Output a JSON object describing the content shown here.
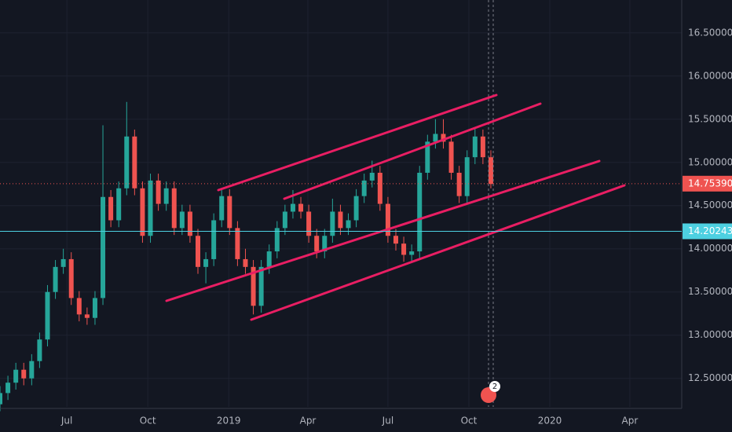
{
  "chart_data": {
    "type": "candlestick",
    "up_color": "#26a69a",
    "down_color": "#ef5350",
    "xlim": [
      0,
      775
    ],
    "xticks": [
      {
        "value": 76,
        "label": "Jul"
      },
      {
        "value": 168,
        "label": "Oct"
      },
      {
        "value": 260,
        "label": "2019"
      },
      {
        "value": 350,
        "label": "Apr"
      },
      {
        "value": 441,
        "label": "Jul"
      },
      {
        "value": 533,
        "label": "Oct"
      },
      {
        "value": 625,
        "label": "2020"
      },
      {
        "value": 716,
        "label": "Apr"
      }
    ],
    "ylim": [
      12.17,
      16.88
    ],
    "yticks": [
      {
        "value": 12.5,
        "label": "12.50000"
      },
      {
        "value": 13,
        "label": "13.00000"
      },
      {
        "value": 13.5,
        "label": "13.50000"
      },
      {
        "value": 14,
        "label": "14.00000"
      },
      {
        "value": 14.5,
        "label": "14.50000"
      },
      {
        "value": 15,
        "label": "15.00000"
      },
      {
        "value": 15.5,
        "label": "15.50000"
      },
      {
        "value": 16,
        "label": "16.00000"
      },
      {
        "value": 16.5,
        "label": "16.50000"
      }
    ],
    "grid": true,
    "price_lines": [
      {
        "value": 14.7539,
        "label": "14.75390",
        "color": "#ef5350",
        "style": "dotted"
      },
      {
        "value": 14.20243,
        "label": "14.20243",
        "color": "#4dd0e1",
        "style": "solid"
      }
    ],
    "badge": "2",
    "candles": [
      [
        0,
        12.2,
        12.41,
        12.12,
        12.33
      ],
      [
        9,
        12.33,
        12.53,
        12.25,
        12.45
      ],
      [
        18,
        12.45,
        12.68,
        12.37,
        12.6
      ],
      [
        27,
        12.6,
        12.68,
        12.42,
        12.5
      ],
      [
        36,
        12.5,
        12.78,
        12.42,
        12.7
      ],
      [
        45,
        12.7,
        13.03,
        12.62,
        12.95
      ],
      [
        54,
        12.95,
        13.58,
        12.87,
        13.5
      ],
      [
        63,
        13.5,
        13.87,
        13.42,
        13.79
      ],
      [
        72,
        13.79,
        14.0,
        13.71,
        13.88
      ],
      [
        81,
        13.88,
        13.96,
        13.35,
        13.43
      ],
      [
        90,
        13.43,
        13.51,
        13.16,
        13.24
      ],
      [
        99,
        13.24,
        13.32,
        13.12,
        13.2
      ],
      [
        108,
        13.2,
        13.51,
        13.12,
        13.43
      ],
      [
        117,
        13.43,
        15.43,
        13.35,
        14.6
      ],
      [
        126,
        14.6,
        14.68,
        14.25,
        14.33
      ],
      [
        135,
        14.33,
        14.78,
        14.25,
        14.7
      ],
      [
        144,
        14.7,
        15.7,
        14.62,
        15.3
      ],
      [
        153,
        15.3,
        15.38,
        14.62,
        14.7
      ],
      [
        162,
        14.7,
        14.78,
        14.07,
        14.15
      ],
      [
        171,
        14.15,
        14.87,
        14.07,
        14.79
      ],
      [
        180,
        14.79,
        14.87,
        14.44,
        14.52
      ],
      [
        189,
        14.52,
        14.78,
        14.44,
        14.7
      ],
      [
        198,
        14.7,
        14.78,
        14.16,
        14.24
      ],
      [
        207,
        14.24,
        14.51,
        14.16,
        14.43
      ],
      [
        216,
        14.43,
        14.51,
        14.07,
        14.15
      ],
      [
        225,
        14.15,
        14.23,
        13.71,
        13.79
      ],
      [
        234,
        13.79,
        13.96,
        13.6,
        13.88
      ],
      [
        243,
        13.88,
        14.41,
        13.8,
        14.33
      ],
      [
        252,
        14.33,
        14.69,
        14.25,
        14.61
      ],
      [
        261,
        14.61,
        14.69,
        14.16,
        14.24
      ],
      [
        270,
        14.24,
        14.32,
        13.8,
        13.88
      ],
      [
        279,
        13.88,
        14.0,
        13.71,
        13.79
      ],
      [
        288,
        13.79,
        13.87,
        13.24,
        13.34
      ],
      [
        297,
        13.34,
        13.87,
        13.26,
        13.79
      ],
      [
        306,
        13.79,
        14.05,
        13.71,
        13.97
      ],
      [
        315,
        13.97,
        14.32,
        13.89,
        14.24
      ],
      [
        324,
        14.24,
        14.51,
        14.16,
        14.43
      ],
      [
        333,
        14.43,
        14.68,
        14.35,
        14.52
      ],
      [
        342,
        14.52,
        14.6,
        14.35,
        14.43
      ],
      [
        351,
        14.43,
        14.51,
        14.07,
        14.15
      ],
      [
        360,
        14.15,
        14.23,
        13.89,
        13.97
      ],
      [
        369,
        13.97,
        14.23,
        13.89,
        14.15
      ],
      [
        378,
        14.15,
        14.58,
        14.07,
        14.43
      ],
      [
        387,
        14.43,
        14.51,
        14.16,
        14.24
      ],
      [
        396,
        14.24,
        14.41,
        14.16,
        14.33
      ],
      [
        405,
        14.33,
        14.69,
        14.25,
        14.61
      ],
      [
        414,
        14.61,
        14.87,
        14.53,
        14.79
      ],
      [
        423,
        14.79,
        15.02,
        14.71,
        14.88
      ],
      [
        432,
        14.88,
        14.96,
        14.44,
        14.52
      ],
      [
        441,
        14.52,
        14.6,
        14.07,
        14.15
      ],
      [
        450,
        14.15,
        14.23,
        13.98,
        14.06
      ],
      [
        459,
        14.06,
        14.14,
        13.85,
        13.93
      ],
      [
        468,
        13.93,
        14.05,
        13.85,
        13.97
      ],
      [
        477,
        13.97,
        14.96,
        13.89,
        14.88
      ],
      [
        486,
        14.88,
        15.32,
        14.8,
        15.24
      ],
      [
        495,
        15.24,
        15.5,
        15.16,
        15.33
      ],
      [
        504,
        15.33,
        15.5,
        15.16,
        15.24
      ],
      [
        513,
        15.24,
        15.32,
        14.8,
        14.88
      ],
      [
        522,
        14.88,
        14.96,
        14.53,
        14.61
      ],
      [
        531,
        14.61,
        15.14,
        14.53,
        15.06
      ],
      [
        540,
        15.06,
        15.4,
        14.98,
        15.3
      ],
      [
        549,
        15.3,
        15.38,
        14.98,
        15.06
      ],
      [
        558,
        15.06,
        15.14,
        14.7,
        14.75
      ]
    ]
  }
}
